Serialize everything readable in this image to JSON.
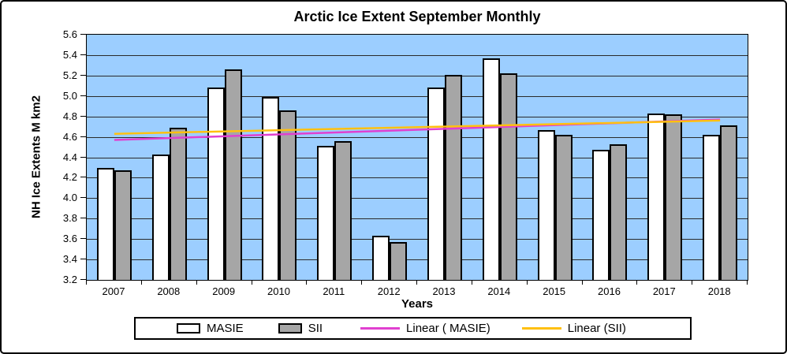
{
  "chart_data": {
    "type": "bar",
    "title": "Arctic Ice Extent September Monthly",
    "xlabel": "Years",
    "ylabel": "NH Ice Extents M km2",
    "categories": [
      "2007",
      "2008",
      "2009",
      "2010",
      "2011",
      "2012",
      "2013",
      "2014",
      "2015",
      "2016",
      "2017",
      "2018"
    ],
    "series": [
      {
        "name": "MASIE",
        "color": "#FFFFFF",
        "values": [
          4.3,
          4.43,
          5.08,
          4.99,
          4.51,
          3.63,
          5.08,
          5.37,
          4.67,
          4.47,
          4.83,
          4.62
        ]
      },
      {
        "name": "SII",
        "color": "#A6A6A6",
        "values": [
          4.27,
          4.69,
          5.26,
          4.86,
          4.56,
          3.57,
          5.21,
          5.22,
          4.62,
          4.53,
          4.82,
          4.71
        ]
      }
    ],
    "trendlines": [
      {
        "name": "Linear ( MASIE)",
        "color": "#E040D0",
        "start_value": 4.57,
        "end_value": 4.77
      },
      {
        "name": "Linear (SII)",
        "color": "#FFC010",
        "start_value": 4.63,
        "end_value": 4.76
      }
    ],
    "ylim": [
      3.2,
      5.6
    ],
    "ytick_step": 0.2,
    "grid": true,
    "plot_bg_color": "#9CCEFF",
    "legend_position": "bottom"
  },
  "legend": {
    "items": [
      {
        "label": "MASIE",
        "swatch": "box",
        "color": "#FFFFFF"
      },
      {
        "label": "SII",
        "swatch": "box",
        "color": "#A6A6A6"
      },
      {
        "label": "Linear ( MASIE)",
        "swatch": "line",
        "color": "#E040D0"
      },
      {
        "label": "Linear (SII)",
        "swatch": "line",
        "color": "#FFC010"
      }
    ]
  }
}
